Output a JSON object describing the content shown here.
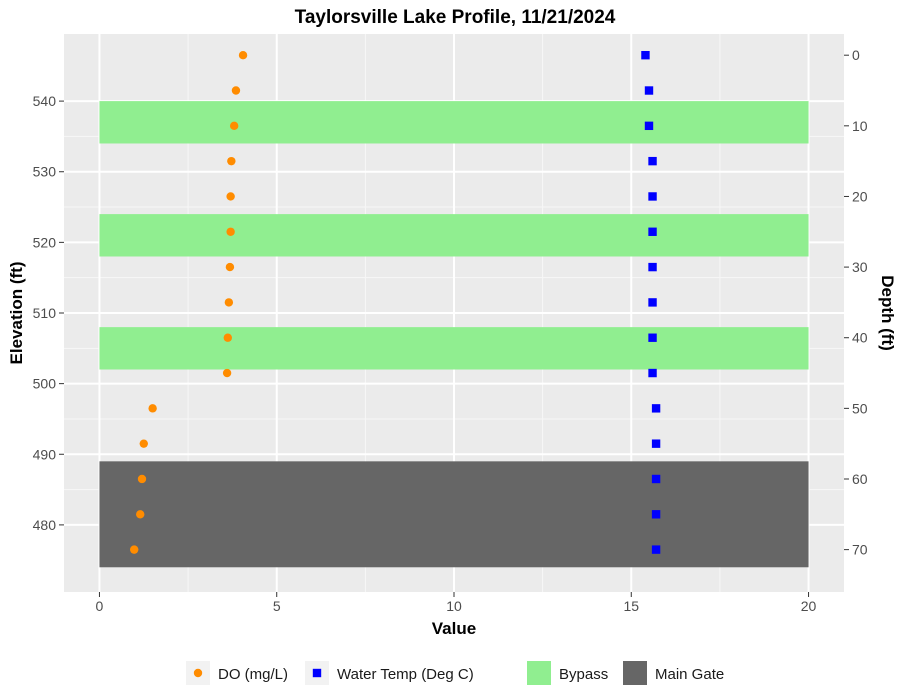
{
  "chart_data": {
    "type": "scatter",
    "title": "Taylorsville Lake Profile,  11/21/2024",
    "xlabel": "Value",
    "ylabel": "Elevation (ft)",
    "y2label": "Depth (ft)",
    "xlim": [
      -1,
      21
    ],
    "ylim": [
      470.5,
      549.5
    ],
    "x_ticks": [
      0,
      5,
      10,
      15,
      20
    ],
    "y_ticks": [
      480,
      490,
      500,
      510,
      520,
      530,
      540
    ],
    "y2_ticks": [
      0,
      10,
      20,
      30,
      40,
      50,
      60,
      70
    ],
    "surface_elevation": 546.5,
    "grid": true,
    "legend_position": "bottom",
    "series": [
      {
        "name": "DO (mg/L)",
        "color": "#ff8c00",
        "shape": "circle",
        "points": [
          {
            "x": 4.05,
            "y": 546.5
          },
          {
            "x": 3.85,
            "y": 541.5
          },
          {
            "x": 3.8,
            "y": 536.5
          },
          {
            "x": 3.72,
            "y": 531.5
          },
          {
            "x": 3.7,
            "y": 526.5
          },
          {
            "x": 3.7,
            "y": 521.5
          },
          {
            "x": 3.68,
            "y": 516.5
          },
          {
            "x": 3.65,
            "y": 511.5
          },
          {
            "x": 3.62,
            "y": 506.5
          },
          {
            "x": 3.6,
            "y": 501.5
          },
          {
            "x": 1.5,
            "y": 496.5
          },
          {
            "x": 1.25,
            "y": 491.5
          },
          {
            "x": 1.2,
            "y": 486.5
          },
          {
            "x": 1.15,
            "y": 481.5
          },
          {
            "x": 0.98,
            "y": 476.5
          }
        ]
      },
      {
        "name": "Water Temp (Deg C)",
        "color": "#0000ff",
        "shape": "square",
        "points": [
          {
            "x": 15.4,
            "y": 546.5
          },
          {
            "x": 15.5,
            "y": 541.5
          },
          {
            "x": 15.5,
            "y": 536.5
          },
          {
            "x": 15.6,
            "y": 531.5
          },
          {
            "x": 15.6,
            "y": 526.5
          },
          {
            "x": 15.6,
            "y": 521.5
          },
          {
            "x": 15.6,
            "y": 516.5
          },
          {
            "x": 15.6,
            "y": 511.5
          },
          {
            "x": 15.6,
            "y": 506.5
          },
          {
            "x": 15.6,
            "y": 501.5
          },
          {
            "x": 15.7,
            "y": 496.5
          },
          {
            "x": 15.7,
            "y": 491.5
          },
          {
            "x": 15.7,
            "y": 486.5
          },
          {
            "x": 15.7,
            "y": 481.5
          },
          {
            "x": 15.7,
            "y": 476.5
          }
        ]
      }
    ],
    "bands": [
      {
        "name": "Bypass",
        "color": "#90ee90",
        "x": [
          0,
          20
        ],
        "y": [
          534,
          540
        ]
      },
      {
        "name": "Bypass",
        "color": "#90ee90",
        "x": [
          0,
          20
        ],
        "y": [
          518,
          524
        ]
      },
      {
        "name": "Bypass",
        "color": "#90ee90",
        "x": [
          0,
          20
        ],
        "y": [
          502,
          508
        ]
      },
      {
        "name": "Main Gate",
        "color": "#666666",
        "x": [
          0,
          20
        ],
        "y": [
          474,
          489
        ]
      }
    ],
    "legend": [
      {
        "label": "DO (mg/L)",
        "kind": "circle",
        "color": "#ff8c00"
      },
      {
        "label": "Water Temp (Deg C)",
        "kind": "square",
        "color": "#0000ff"
      },
      {
        "label": "Bypass",
        "kind": "fill",
        "color": "#90ee90"
      },
      {
        "label": "Main Gate",
        "kind": "fill",
        "color": "#666666"
      }
    ]
  }
}
